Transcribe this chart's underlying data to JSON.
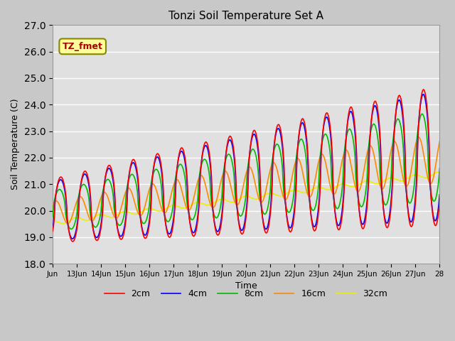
{
  "title": "Tonzi Soil Temperature Set A",
  "xlabel": "Time",
  "ylabel": "Soil Temperature (C)",
  "annotation": "TZ_fmet",
  "ylim": [
    18.0,
    27.0
  ],
  "yticks": [
    18.0,
    19.0,
    20.0,
    21.0,
    22.0,
    23.0,
    24.0,
    25.0,
    26.0,
    27.0
  ],
  "xtick_labels": [
    "Jun",
    "13Jun",
    "14Jun",
    "15Jun",
    "16Jun",
    "17Jun",
    "18Jun",
    "19Jun",
    "20Jun",
    "21Jun",
    "22Jun",
    "23Jun",
    "24Jun",
    "25Jun",
    "26Jun",
    "27Jun",
    "28"
  ],
  "colors": {
    "2cm": "#ff0000",
    "4cm": "#0000ff",
    "8cm": "#00bb00",
    "16cm": "#ff8800",
    "32cm": "#eeee00"
  },
  "background_color": "#c8c8c8",
  "plot_bg_color": "#e0e0e0",
  "annotation_bg": "#ffff99",
  "annotation_border": "#888800",
  "annotation_text_color": "#aa0000"
}
